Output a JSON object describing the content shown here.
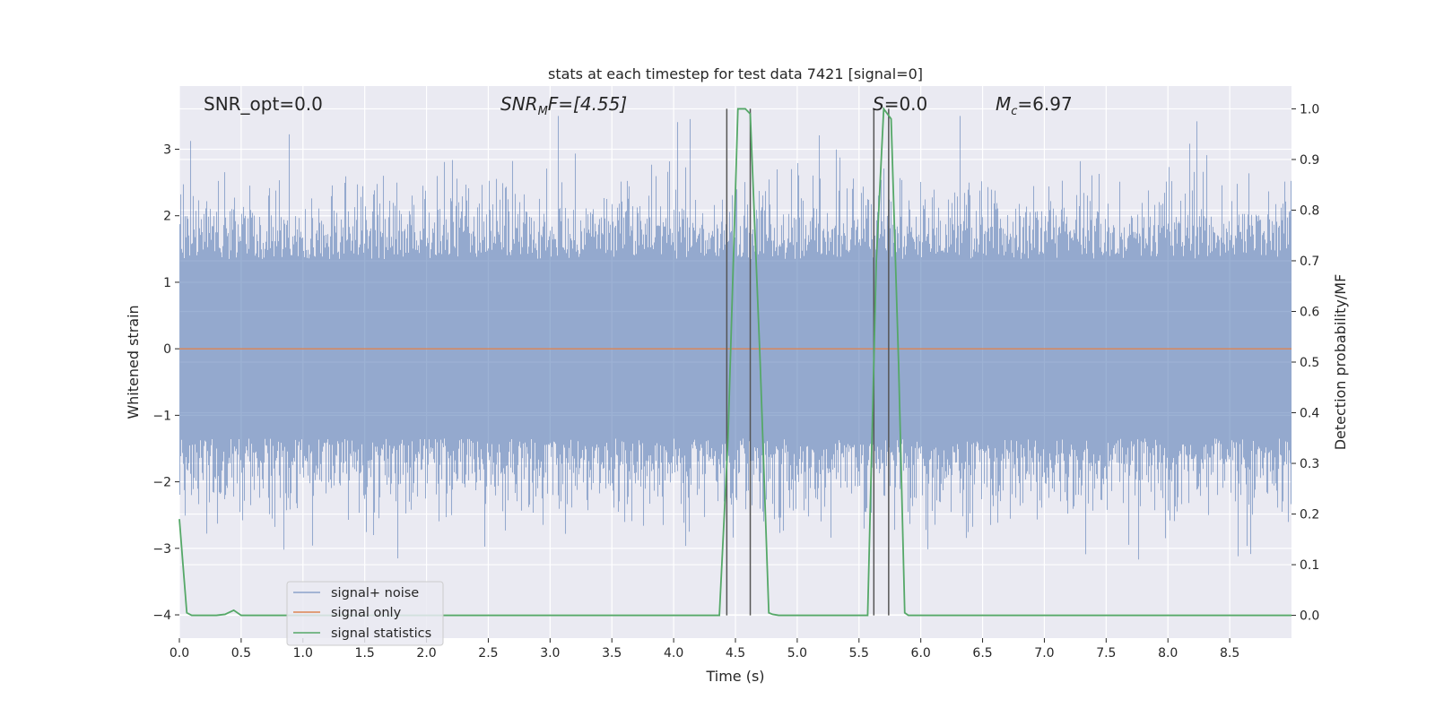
{
  "chart_data": {
    "type": "line",
    "title": "stats at each timestep for test data 7421 [signal=0]",
    "xlabel": "Time (s)",
    "ylabel": "Whitened strain",
    "y2label": "Detection probability/MF",
    "xlim": [
      0.0,
      9.0
    ],
    "ylim": [
      -4.35,
      3.95
    ],
    "y2lim": [
      -0.045,
      1.045
    ],
    "xticks": [
      "0.0",
      "0.5",
      "1.0",
      "1.5",
      "2.0",
      "2.5",
      "3.0",
      "3.5",
      "4.0",
      "4.5",
      "5.0",
      "5.5",
      "6.0",
      "6.5",
      "7.0",
      "7.5",
      "8.0",
      "8.5"
    ],
    "yticks": [
      "−4",
      "−3",
      "−2",
      "−1",
      "0",
      "1",
      "2",
      "3"
    ],
    "y2ticks": [
      "0.0",
      "0.1",
      "0.2",
      "0.3",
      "0.4",
      "0.5",
      "0.6",
      "0.7",
      "0.8",
      "0.9",
      "1.0"
    ],
    "annotations": {
      "snr_opt": "SNR_opt=0.0",
      "snr_mf_base": "SNR",
      "snr_mf_sub": "M",
      "snr_mf_rest": "F=[4.55]",
      "s_base": "S",
      "s_rest": "=0.0",
      "mc_base": "M",
      "mc_sub": "c",
      "mc_rest": "=6.97"
    },
    "series": [
      {
        "name": "signal+ noise",
        "color": "#4c72b0",
        "kind": "noise",
        "typical_amplitude": 1.35,
        "max_amplitude": 3.5
      },
      {
        "name": "signal only",
        "color": "#dd8452",
        "kind": "flat",
        "value": 0.0
      },
      {
        "name": "signal statistics",
        "color": "#55a868",
        "axis": "right",
        "x": [
          0.0,
          0.06,
          0.1,
          0.2,
          0.3,
          0.37,
          0.44,
          0.5,
          0.6,
          1.0,
          2.0,
          3.0,
          4.0,
          4.37,
          4.44,
          4.52,
          4.58,
          4.62,
          4.7,
          4.77,
          4.8,
          4.85,
          5.0,
          5.2,
          5.4,
          5.57,
          5.64,
          5.7,
          5.76,
          5.82,
          5.87,
          5.9,
          6.0,
          7.0,
          8.0,
          9.0
        ],
        "y": [
          0.19,
          0.005,
          0.0,
          0.0,
          0.0,
          0.002,
          0.01,
          0.0,
          0.0,
          0.0,
          0.0,
          0.0,
          0.0,
          0.0,
          0.35,
          1.0,
          1.0,
          0.99,
          0.5,
          0.005,
          0.002,
          0.0,
          0.0,
          0.0,
          0.0,
          0.0,
          0.7,
          1.0,
          0.98,
          0.5,
          0.005,
          0.0,
          0.0,
          0.0,
          0.0,
          0.0
        ]
      }
    ],
    "vlines": {
      "x": [
        4.43,
        4.62,
        5.62,
        5.74
      ],
      "color": "#555555",
      "y2_top": 1.0
    }
  },
  "legend": {
    "items": [
      {
        "label": "signal+ noise",
        "color": "#4c72b0"
      },
      {
        "label": "signal only",
        "color": "#dd8452"
      },
      {
        "label": "signal statistics",
        "color": "#55a868"
      }
    ]
  }
}
